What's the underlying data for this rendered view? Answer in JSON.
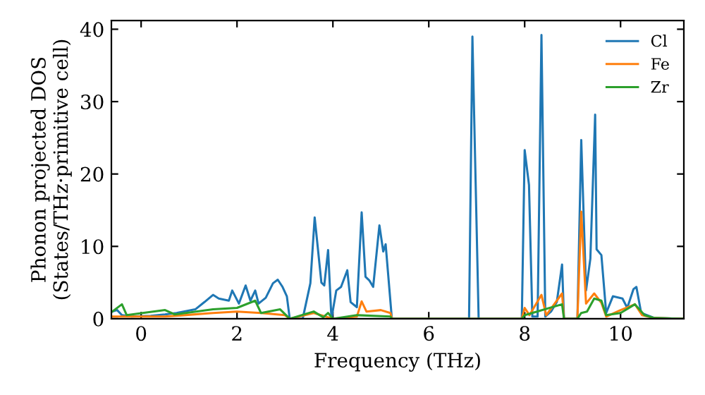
{
  "chart_data": {
    "type": "line",
    "xlabel": "Frequency (THz)",
    "ylabel": "Phonon projected DOS\n(States/THz·primitive cell)",
    "xlim": [
      -0.62,
      11.32
    ],
    "ylim": [
      0,
      41.2
    ],
    "xticks": [
      0,
      2,
      4,
      6,
      8,
      10
    ],
    "yticks": [
      0,
      10,
      20,
      30,
      40
    ],
    "grid": false,
    "legend": "top right",
    "marker": "none",
    "line_style": "solid",
    "series": [
      {
        "name": "Cl",
        "color": "#1f77b4",
        "x": [
          -0.6,
          -0.5,
          -0.4,
          -0.2,
          0.2,
          0.5,
          0.74,
          1.13,
          1.32,
          1.5,
          1.62,
          1.83,
          1.9,
          2.04,
          2.18,
          2.28,
          2.38,
          2.45,
          2.6,
          2.75,
          2.85,
          2.95,
          3.04,
          3.1,
          3.37,
          3.53,
          3.62,
          3.76,
          3.82,
          3.9,
          3.97,
          4.07,
          4.17,
          4.3,
          4.37,
          4.5,
          4.6,
          4.68,
          4.76,
          4.84,
          4.97,
          5.05,
          5.1,
          5.23,
          6.84,
          6.91,
          7.04,
          7.94,
          8.0,
          8.09,
          8.16,
          8.27,
          8.35,
          8.43,
          8.55,
          8.67,
          8.78,
          8.82,
          9.1,
          9.18,
          9.28,
          9.37,
          9.47,
          9.5,
          9.6,
          9.7,
          9.84,
          10.04,
          10.14,
          10.27,
          10.33,
          10.43,
          10.71,
          11.3
        ],
        "values": [
          1.0,
          1.2,
          0.5,
          0.3,
          0.4,
          0.6,
          0.8,
          1.3,
          2.3,
          3.3,
          2.8,
          2.5,
          3.9,
          2.1,
          4.6,
          2.5,
          3.9,
          2.1,
          2.9,
          4.9,
          5.4,
          4.4,
          3.1,
          0,
          0,
          4.9,
          14.0,
          5.0,
          4.6,
          9.5,
          0,
          3.9,
          4.4,
          6.7,
          2.3,
          1.6,
          14.7,
          5.8,
          5.3,
          4.4,
          12.9,
          9.3,
          10.3,
          0,
          0,
          39.0,
          0,
          0,
          23.3,
          18.5,
          0.3,
          0.3,
          39.2,
          0.3,
          1.0,
          2.3,
          7.5,
          0,
          0,
          24.7,
          3.9,
          8.3,
          28.2,
          9.6,
          8.8,
          0.8,
          3.1,
          2.8,
          1.5,
          4.1,
          4.4,
          0.8,
          0.1,
          0
        ]
      },
      {
        "name": "Fe",
        "color": "#ff7f0e",
        "x": [
          -0.6,
          0.5,
          1.5,
          2.0,
          2.5,
          3.0,
          3.1,
          3.6,
          4.0,
          4.5,
          4.6,
          4.7,
          5.0,
          5.2,
          5.23,
          7.94,
          8.0,
          8.1,
          8.35,
          8.45,
          8.78,
          8.82,
          9.1,
          9.18,
          9.28,
          9.45,
          9.6,
          9.7,
          10.0,
          10.3,
          10.45,
          10.7,
          11.3
        ],
        "values": [
          0.3,
          0.3,
          0.8,
          1.0,
          0.8,
          0.5,
          0,
          0.8,
          0,
          0.3,
          2.4,
          1.0,
          1.2,
          0.8,
          0,
          0,
          1.5,
          0.5,
          3.3,
          0.5,
          3.5,
          0,
          0,
          14.8,
          2.1,
          3.5,
          2.2,
          0.3,
          1.2,
          2.0,
          0.5,
          0.1,
          0
        ]
      },
      {
        "name": "Zr",
        "color": "#2ca02c",
        "x": [
          -0.6,
          -0.4,
          -0.3,
          0.5,
          0.7,
          1.5,
          2.0,
          2.38,
          2.5,
          2.9,
          3.1,
          3.6,
          3.8,
          3.9,
          4.0,
          4.5,
          5.2,
          5.23,
          7.94,
          8.0,
          8.78,
          8.82,
          9.1,
          9.18,
          9.3,
          9.45,
          9.6,
          9.7,
          10.0,
          10.3,
          10.5,
          10.7,
          11.3
        ],
        "values": [
          1.0,
          2.0,
          0.5,
          1.2,
          0.6,
          1.3,
          1.5,
          2.5,
          0.8,
          1.3,
          0,
          1.0,
          0.2,
          0.8,
          0,
          0.5,
          0.3,
          0,
          0,
          0.5,
          2.0,
          0,
          0,
          0.8,
          1.0,
          2.8,
          2.5,
          0.5,
          0.8,
          2.0,
          0.5,
          0.1,
          0
        ]
      }
    ]
  }
}
